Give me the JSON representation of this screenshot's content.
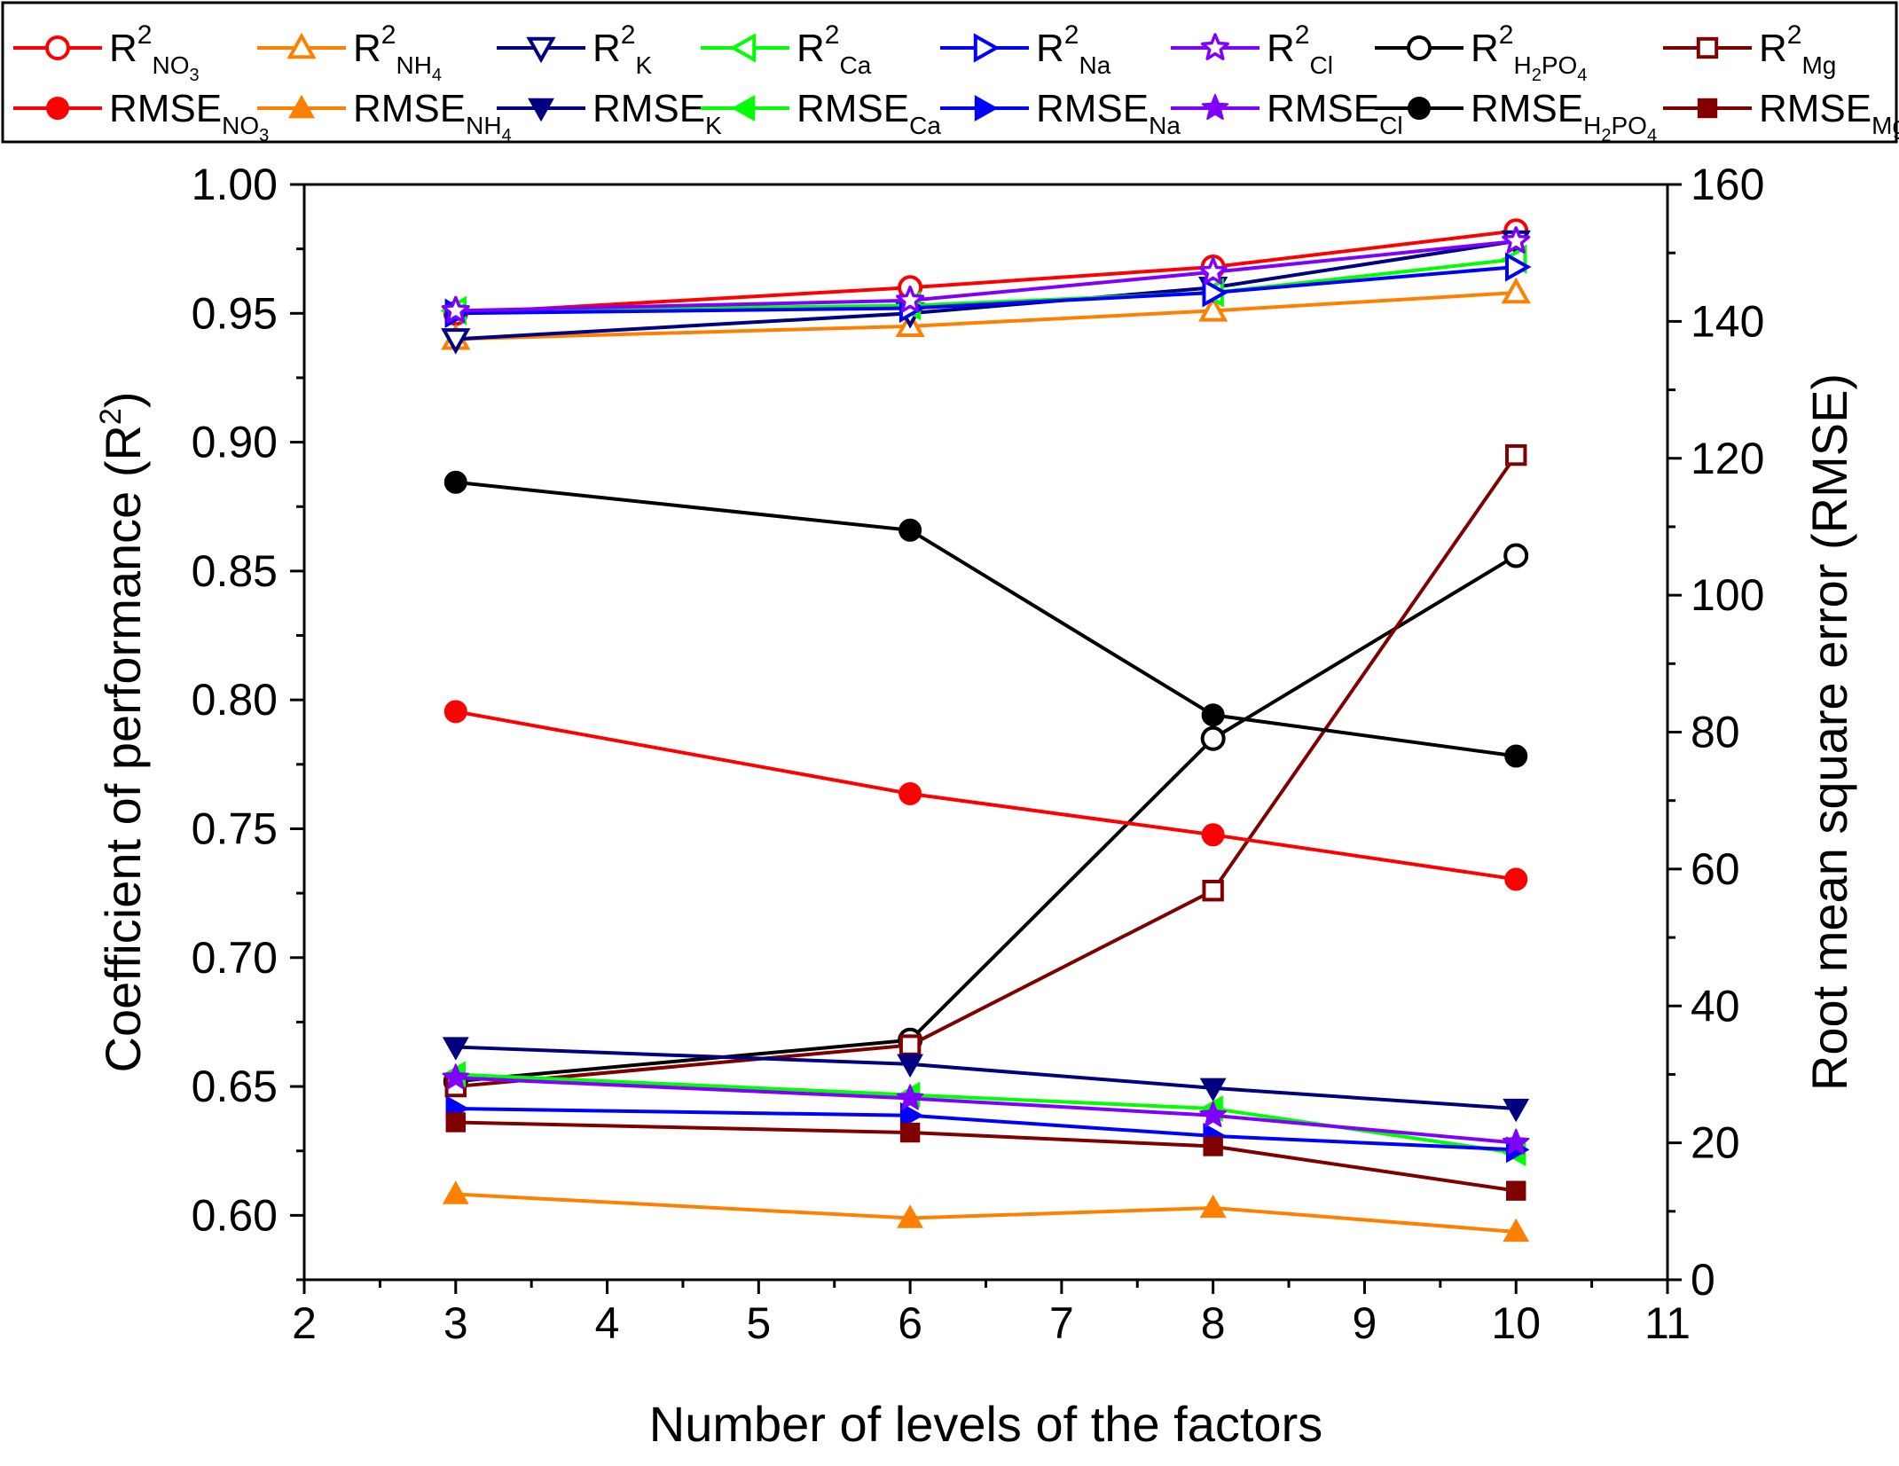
{
  "chart_data": {
    "type": "line",
    "title": "",
    "xlabel": "Number of levels of the factors",
    "ylabel": "Coefficient of performance (R2)",
    "ylabel_parts": {
      "main": "Coefficient of performance (R",
      "sup": "2",
      "end": ")"
    },
    "y2label": "Root mean square error (RMSE)",
    "xlim": [
      2,
      11
    ],
    "ylim": [
      0.575,
      1.0
    ],
    "y2lim": [
      0,
      160
    ],
    "grid": false,
    "legend_position": "top",
    "x_ticks": [
      "2",
      "3",
      "4",
      "5",
      "6",
      "7",
      "8",
      "9",
      "10",
      "11"
    ],
    "y_ticks": [
      "0.60",
      "0.65",
      "0.70",
      "0.75",
      "0.80",
      "0.85",
      "0.90",
      "0.95",
      "1.00"
    ],
    "y2_ticks": [
      "0",
      "20",
      "40",
      "60",
      "80",
      "100",
      "120",
      "140",
      "160"
    ],
    "x": [
      3,
      6,
      8,
      10
    ],
    "series": [
      {
        "name": "R2 NO3",
        "base": "R",
        "sup": "2",
        "sub": "NO",
        "sub_tail": "3",
        "axis": "left",
        "marker": "circle",
        "filled": false,
        "color": "#ff0000",
        "values": [
          0.95,
          0.96,
          0.968,
          0.982
        ]
      },
      {
        "name": "R2 NH4",
        "base": "R",
        "sup": "2",
        "sub": "NH",
        "sub_tail": "4",
        "axis": "left",
        "marker": "triangle-up",
        "filled": false,
        "color": "#ff8000",
        "values": [
          0.94,
          0.945,
          0.951,
          0.958
        ]
      },
      {
        "name": "R2 K",
        "base": "R",
        "sup": "2",
        "sub": "K",
        "sub_tail": "",
        "axis": "left",
        "marker": "triangle-down",
        "filled": false,
        "color": "#000080",
        "values": [
          0.94,
          0.95,
          0.96,
          0.978
        ]
      },
      {
        "name": "R2 Ca",
        "base": "R",
        "sup": "2",
        "sub": "Ca",
        "sub_tail": "",
        "axis": "left",
        "marker": "triangle-left",
        "filled": false,
        "color": "#00ff00",
        "values": [
          0.951,
          0.953,
          0.958,
          0.971
        ]
      },
      {
        "name": "R2 Na",
        "base": "R",
        "sup": "2",
        "sub": "Na",
        "sub_tail": "",
        "axis": "left",
        "marker": "triangle-right",
        "filled": false,
        "color": "#0000ff",
        "values": [
          0.95,
          0.952,
          0.958,
          0.968
        ]
      },
      {
        "name": "R2 Cl",
        "base": "R",
        "sup": "2",
        "sub": "Cl",
        "sub_tail": "",
        "axis": "left",
        "marker": "star",
        "filled": false,
        "color": "#8000ff",
        "values": [
          0.951,
          0.955,
          0.966,
          0.978
        ]
      },
      {
        "name": "R2 H2PO4",
        "base": "R",
        "sup": "2",
        "sub": "H",
        "sub_tail": "2PO4",
        "axis": "left",
        "marker": "circle",
        "filled": false,
        "color": "#000000",
        "values": [
          0.652,
          0.668,
          0.785,
          0.856
        ]
      },
      {
        "name": "R2 Mg",
        "base": "R",
        "sup": "2",
        "sub": "Mg",
        "sub_tail": "",
        "axis": "left",
        "marker": "square",
        "filled": false,
        "color": "#800000",
        "values": [
          0.65,
          0.666,
          0.726,
          0.895
        ]
      },
      {
        "name": "RMSE NO3",
        "base": "RMSE",
        "sup": "",
        "sub": "NO",
        "sub_tail": "3",
        "axis": "right",
        "marker": "circle",
        "filled": true,
        "color": "#ff0000",
        "values": [
          83,
          71,
          65,
          58.5
        ]
      },
      {
        "name": "RMSE NH4",
        "base": "RMSE",
        "sup": "",
        "sub": "NH",
        "sub_tail": "4",
        "axis": "right",
        "marker": "triangle-up",
        "filled": true,
        "color": "#ff8000",
        "values": [
          12.5,
          9,
          10.5,
          7
        ]
      },
      {
        "name": "RMSE K",
        "base": "RMSE",
        "sup": "",
        "sub": "K",
        "sub_tail": "",
        "axis": "right",
        "marker": "triangle-down",
        "filled": true,
        "color": "#000080",
        "values": [
          34,
          31.5,
          28,
          25
        ]
      },
      {
        "name": "RMSE Ca",
        "base": "RMSE",
        "sup": "",
        "sub": "Ca",
        "sub_tail": "",
        "axis": "right",
        "marker": "triangle-left",
        "filled": true,
        "color": "#00ff00",
        "values": [
          30,
          27,
          25,
          18.5
        ]
      },
      {
        "name": "RMSE Na",
        "base": "RMSE",
        "sup": "",
        "sub": "Na",
        "sub_tail": "",
        "axis": "right",
        "marker": "triangle-right",
        "filled": true,
        "color": "#0000ff",
        "values": [
          25,
          24,
          21,
          19
        ]
      },
      {
        "name": "RMSE Cl",
        "base": "RMSE",
        "sup": "",
        "sub": "Cl",
        "sub_tail": "",
        "axis": "right",
        "marker": "star",
        "filled": true,
        "color": "#8000ff",
        "values": [
          29.5,
          26.5,
          24,
          20
        ]
      },
      {
        "name": "RMSE H2PO4",
        "base": "RMSE",
        "sup": "",
        "sub": "H",
        "sub_tail": "2PO4",
        "axis": "right",
        "marker": "circle",
        "filled": true,
        "color": "#000000",
        "values": [
          116.5,
          109.5,
          82.5,
          76.5
        ]
      },
      {
        "name": "RMSE Mg",
        "base": "RMSE",
        "sup": "",
        "sub": "Mg",
        "sub_tail": "",
        "axis": "right",
        "marker": "square",
        "filled": true,
        "color": "#800000",
        "values": [
          23,
          21.5,
          19.5,
          13
        ]
      }
    ]
  }
}
